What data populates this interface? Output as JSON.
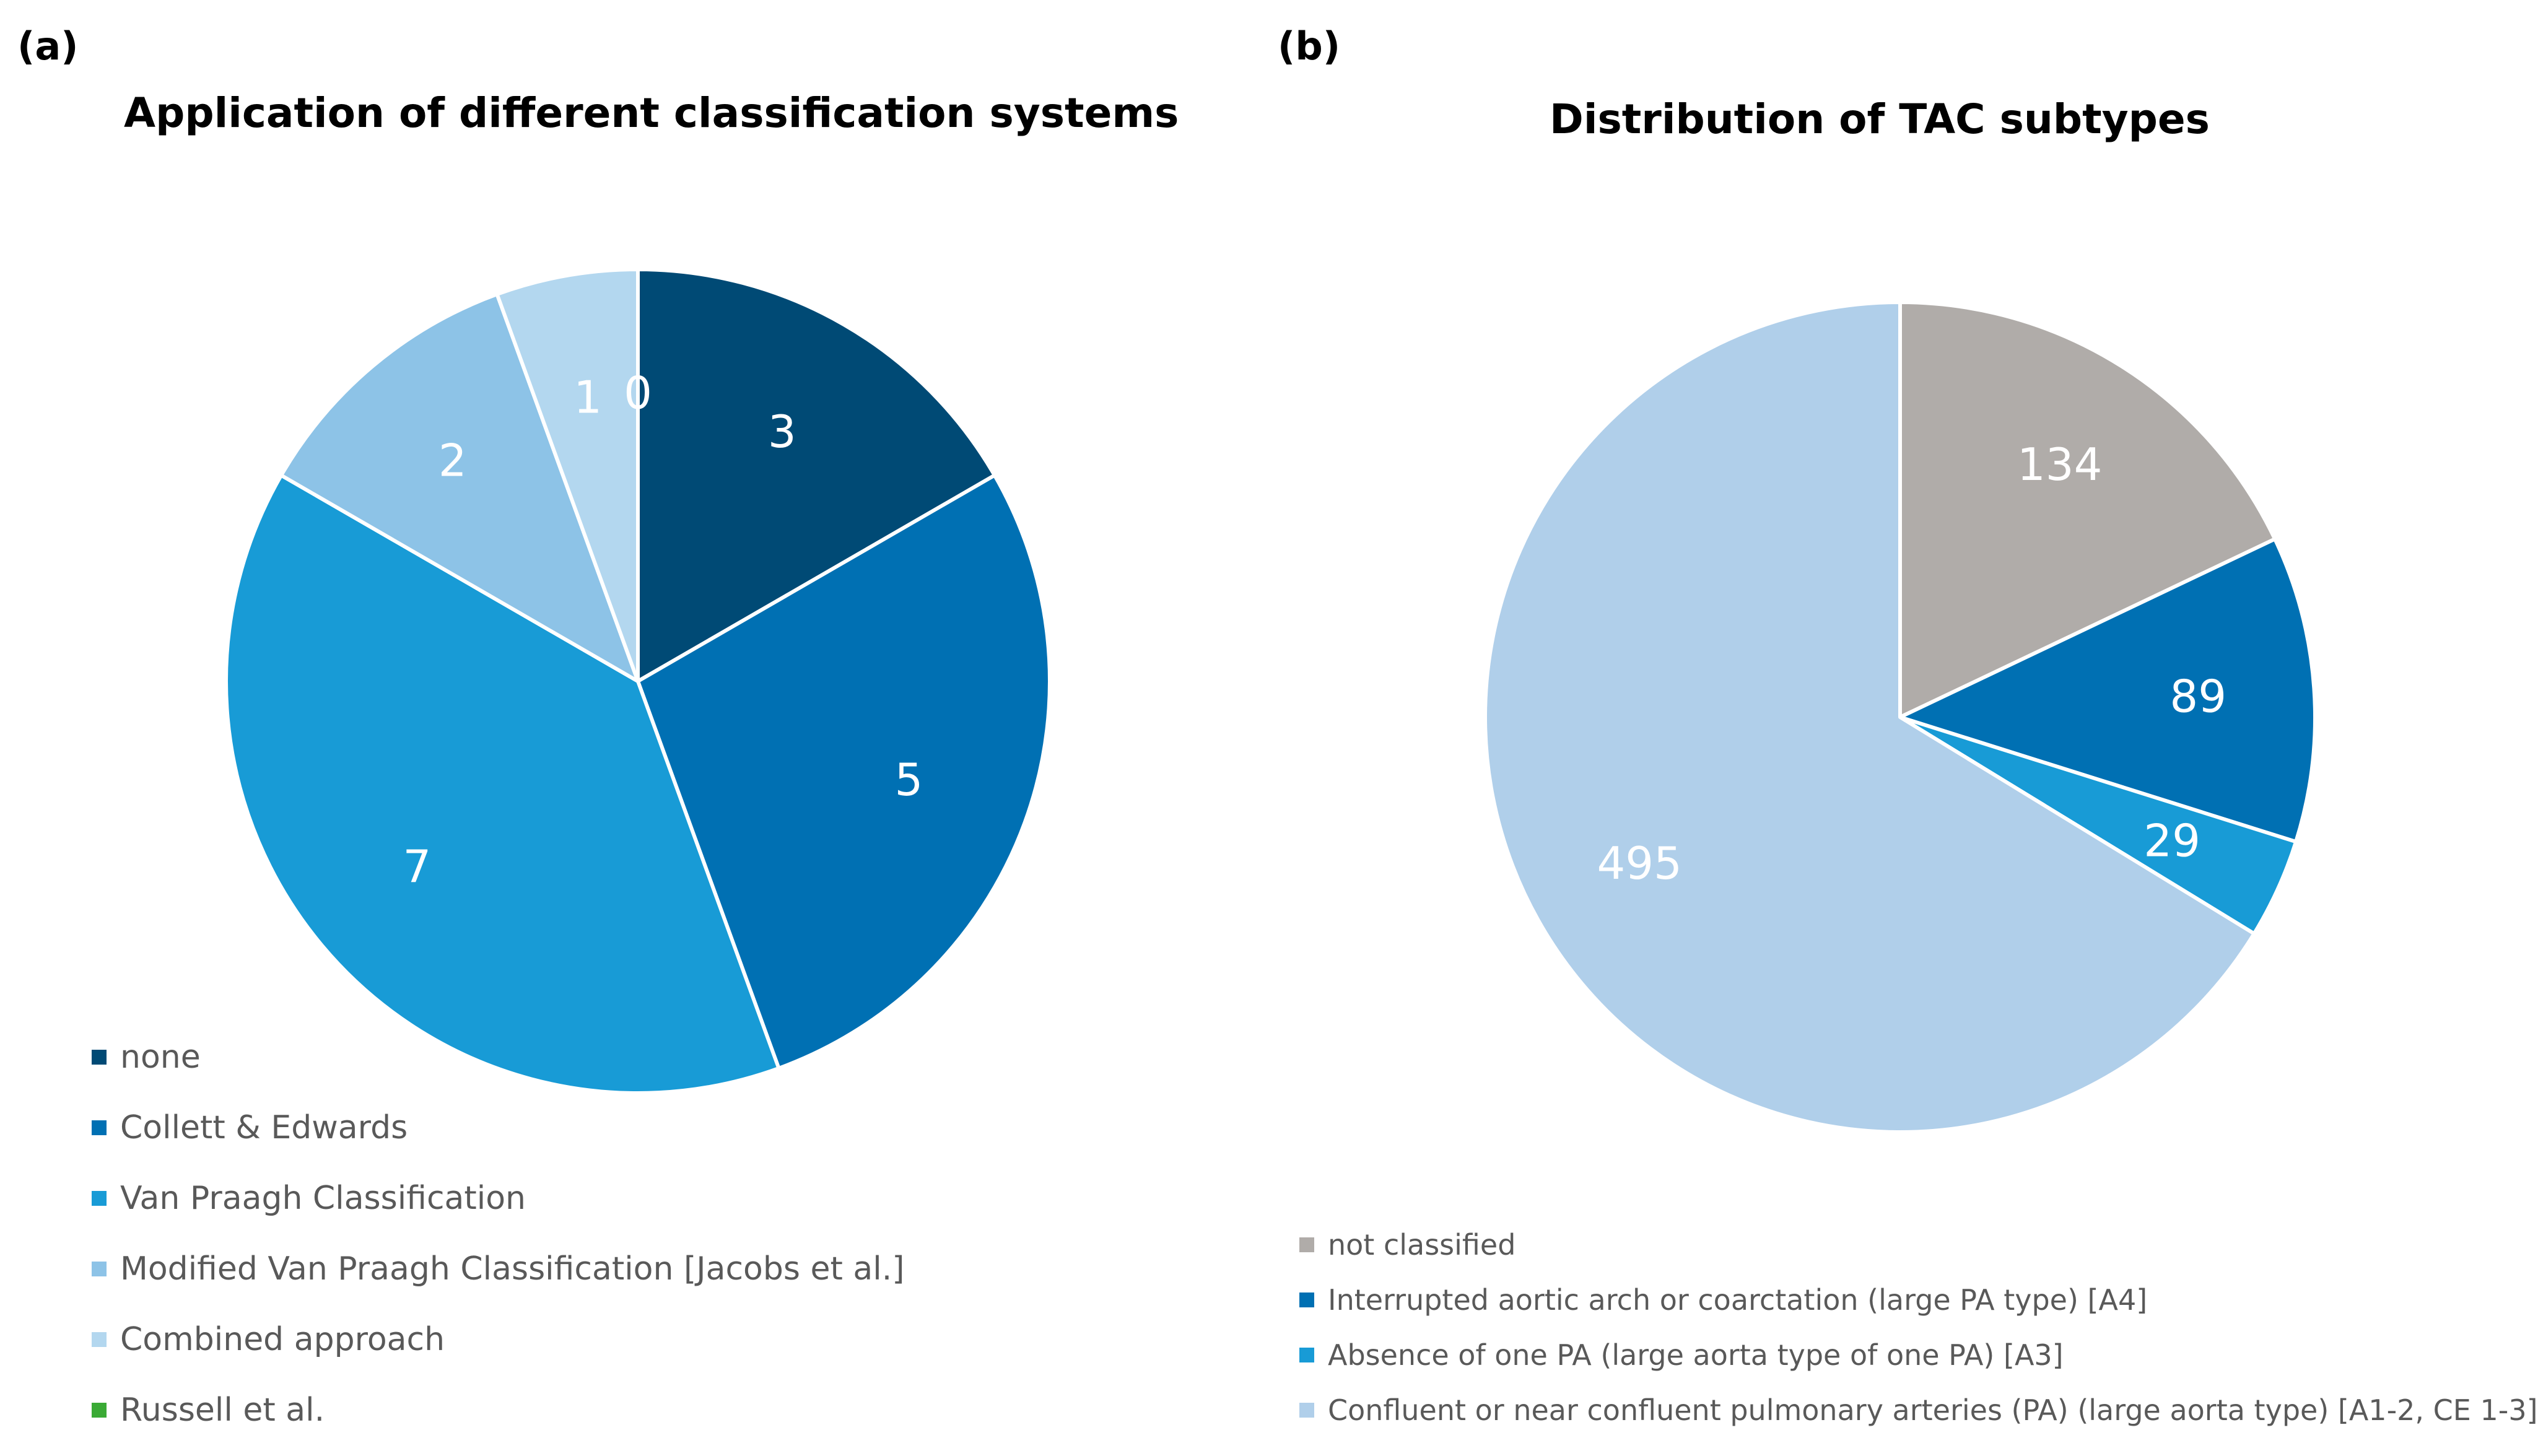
{
  "figure": {
    "panel_a_label": "(a)",
    "panel_b_label": "(b)"
  },
  "chart_data": [
    {
      "type": "pie",
      "title": "Application of different classification systems",
      "slices": [
        {
          "label": "none",
          "value": 3,
          "display": "3",
          "color": "#004a75"
        },
        {
          "label": "Collett & Edwards",
          "value": 5,
          "display": "5",
          "color": "#0070b3"
        },
        {
          "label": "Van Praagh Classification",
          "value": 7,
          "display": "7",
          "color": "#189bd6"
        },
        {
          "label": "Modified Van Praagh Classification [Jacobs et al.]",
          "value": 2,
          "display": "2",
          "color": "#8dc3e7"
        },
        {
          "label": "Combined approach",
          "value": 1,
          "display": "1",
          "color": "#b3d7ef"
        },
        {
          "label": "Russell et al.",
          "value": 0,
          "display": "0",
          "color": "#3aaa35"
        }
      ],
      "legend_position": "bottom-left"
    },
    {
      "type": "pie",
      "title": "Distribution of TAC subtypes",
      "slices": [
        {
          "label": "not classified",
          "value": 134,
          "display": "134",
          "color": "#b0aca9"
        },
        {
          "label": "Interrupted aortic arch or coarctation (large PA type) [A4]",
          "value": 89,
          "display": "89",
          "color": "#0070b3"
        },
        {
          "label": "Absence of one PA (large aorta type of one PA) [A3]",
          "value": 29,
          "display": "29",
          "color": "#189bd6"
        },
        {
          "label": "Confluent or near confluent pulmonary arteries (PA) (large aorta type) [A1-2, CE 1-3]",
          "value": 495,
          "display": "495",
          "color": "#b0cfea"
        }
      ],
      "legend_position": "bottom-left"
    }
  ]
}
